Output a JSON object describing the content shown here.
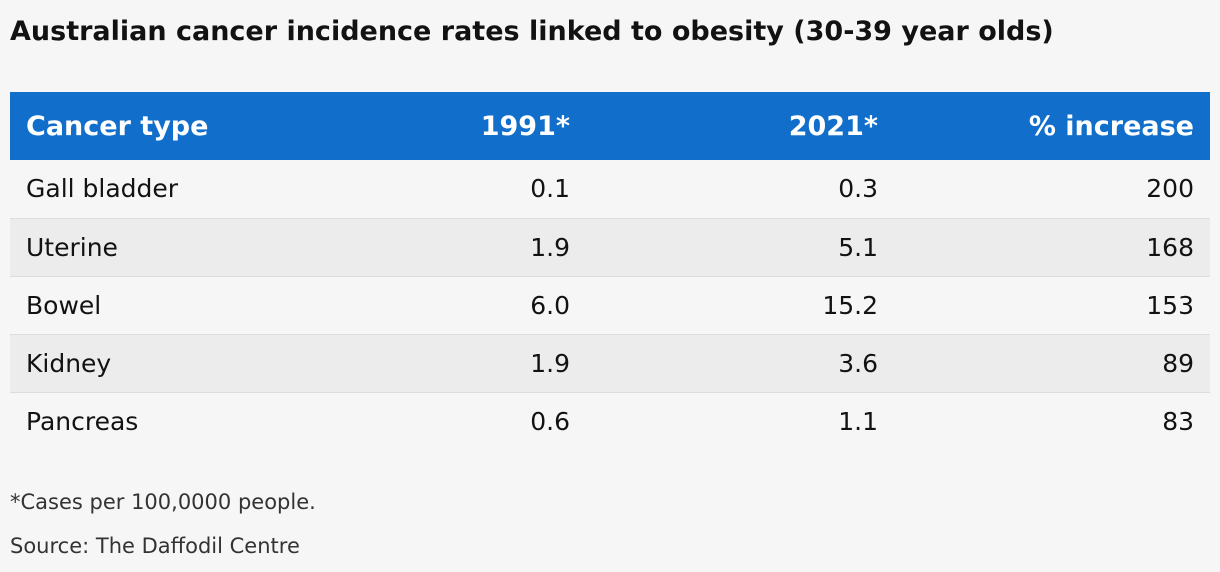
{
  "chart_data": {
    "type": "table",
    "title": "Australian cancer incidence rates linked to obesity (30-39 year olds)",
    "columns": [
      "Cancer type",
      "1991*",
      "2021*",
      "% increase"
    ],
    "rows": [
      [
        "Gall bladder",
        "0.1",
        "0.3",
        "200"
      ],
      [
        "Uterine",
        "1.9",
        "5.1",
        "168"
      ],
      [
        "Bowel",
        "6.0",
        "15.2",
        "153"
      ],
      [
        "Kidney",
        "1.9",
        "3.6",
        "89"
      ],
      [
        "Pancreas",
        "0.6",
        "1.1",
        "83"
      ]
    ],
    "note": "*Cases per 100,0000 people.",
    "source": "Source: The Daffodil Centre",
    "header_color": "#116ecb",
    "stripe_color": "#ececec",
    "background_color": "#f6f6f6"
  }
}
